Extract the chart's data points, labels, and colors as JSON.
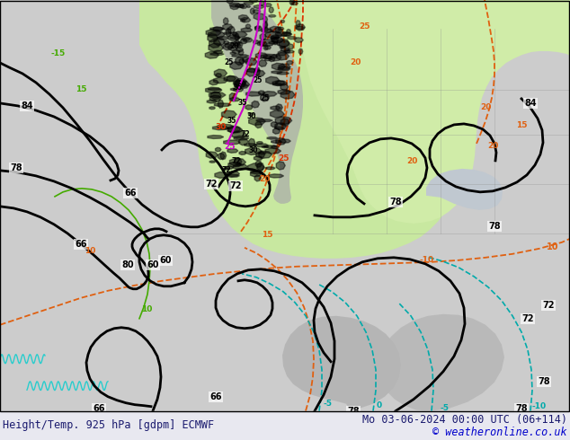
{
  "title_left": "Height/Temp. 925 hPa [gdpm] ECMWF",
  "title_right": "Mo 03-06-2024 00:00 UTC (06+114)",
  "copyright": "© weatheronline.co.uk",
  "bg_color": "#cccccc",
  "land_color": "#c8e8a0",
  "bottom_bar_color": "#e8e8f0",
  "figsize": [
    6.34,
    4.9
  ],
  "dpi": 100,
  "title_fontsize": 8.5
}
